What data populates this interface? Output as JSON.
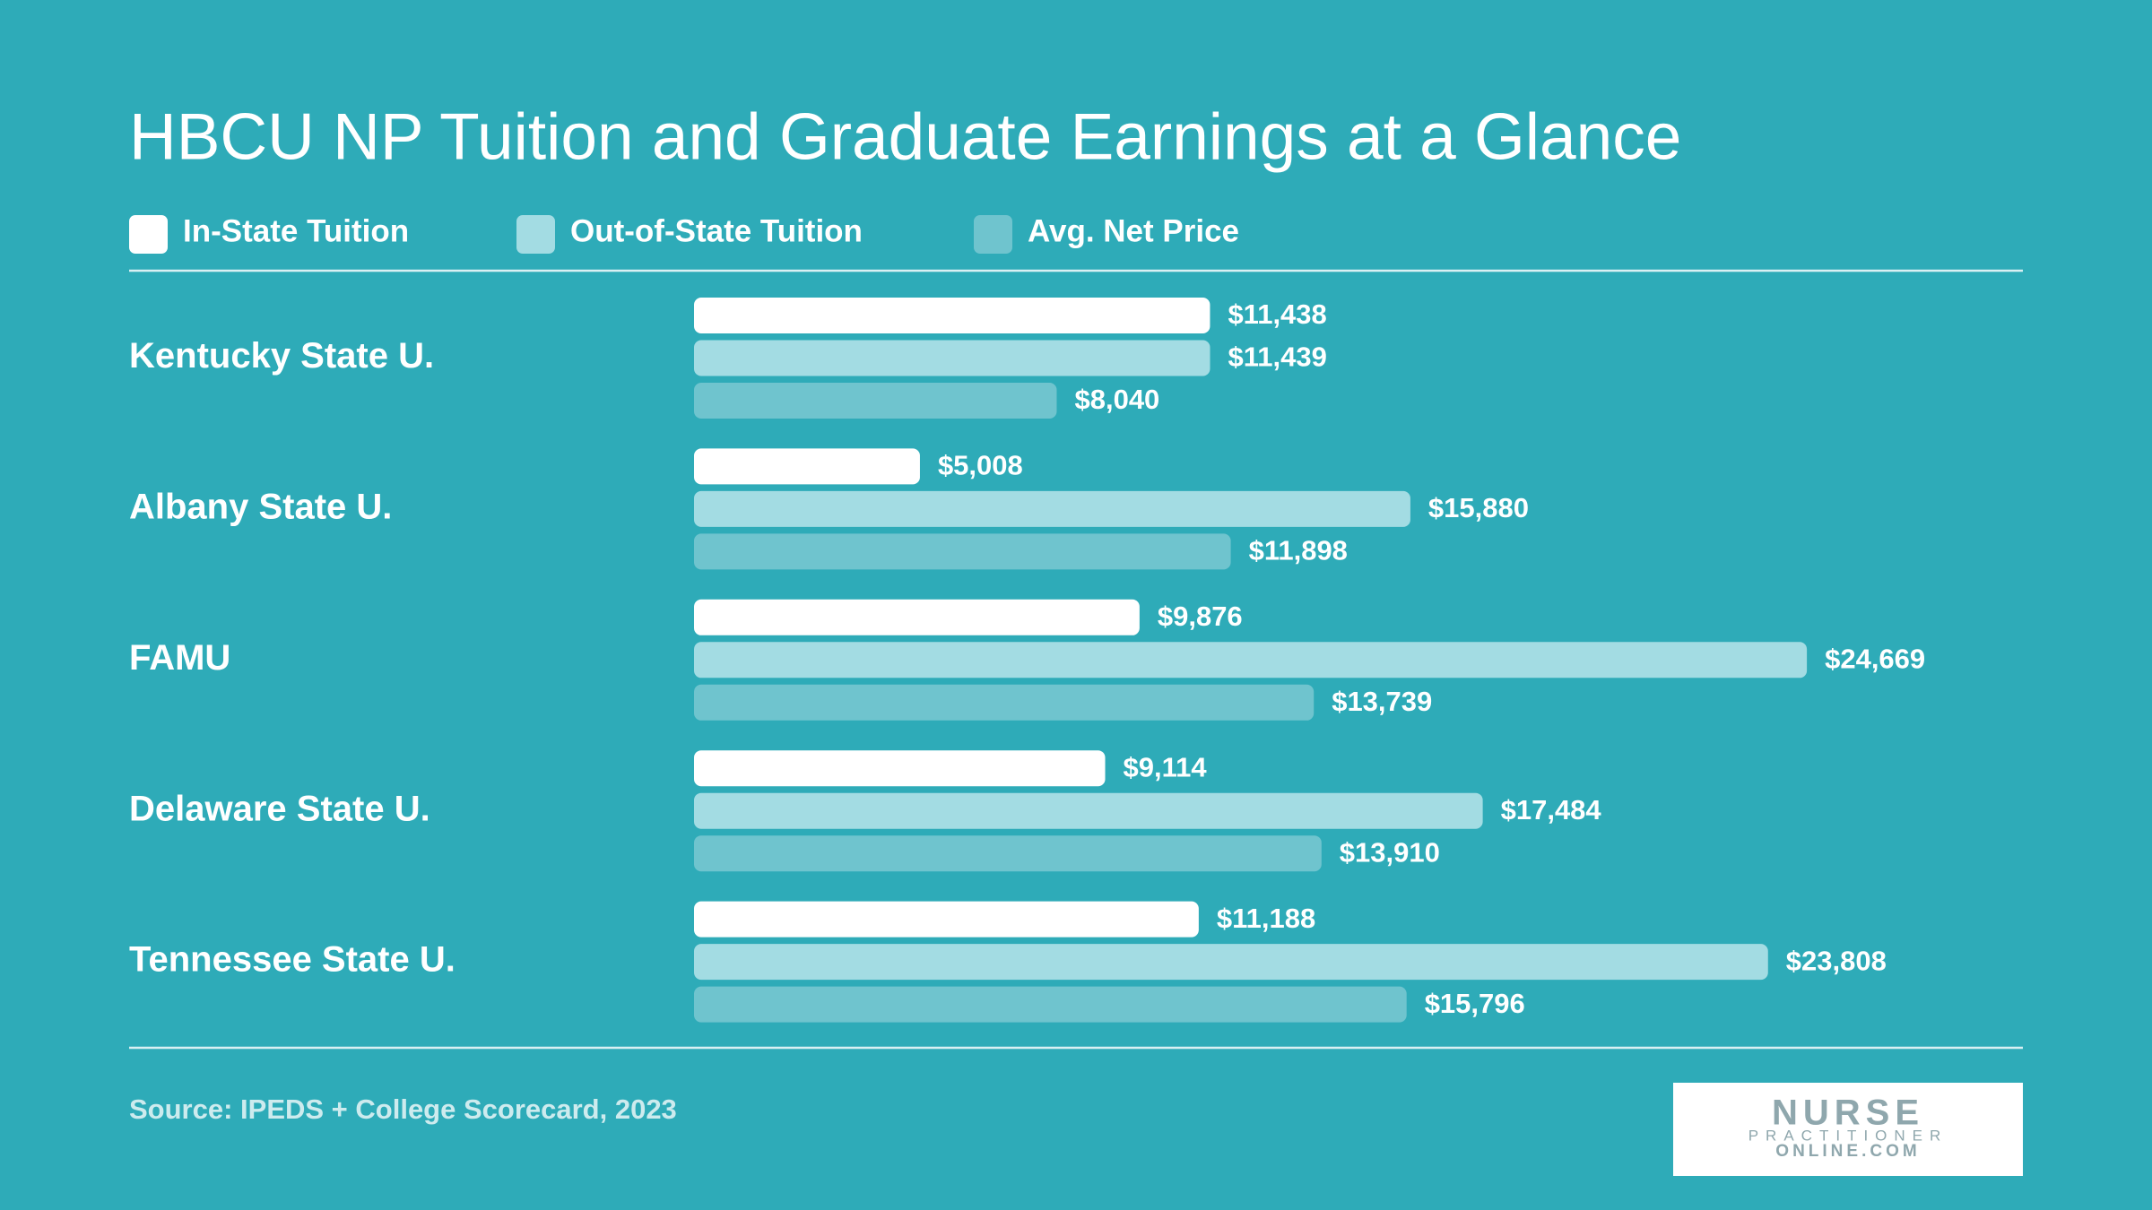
{
  "chart_data": {
    "type": "bar",
    "orientation": "horizontal",
    "title": "HBCU NP Tuition and Graduate Earnings at a Glance",
    "categories": [
      "Kentucky State U.",
      "Albany State U.",
      "FAMU",
      "Delaware State U.",
      "Tennessee State U."
    ],
    "series": [
      {
        "name": "In-State Tuition",
        "color": "#ffffff",
        "values": [
          11438,
          5008,
          9876,
          9114,
          11188
        ],
        "value_labels": [
          "$11,438",
          "$5,008",
          "$9,876",
          "$9,114",
          "$11,188"
        ]
      },
      {
        "name": "Out-of-State Tuition",
        "color": "#a3dce3",
        "values": [
          11439,
          15880,
          24669,
          17484,
          23808
        ],
        "value_labels": [
          "$11,439",
          "$15,880",
          "$24,669",
          "$17,484",
          "$23,808"
        ]
      },
      {
        "name": "Avg. Net Price",
        "color": "#6fc4ce",
        "values": [
          8040,
          11898,
          13739,
          13910,
          15796
        ],
        "value_labels": [
          "$8,040",
          "$11,898",
          "$13,739",
          "$13,910",
          "$15,796"
        ]
      }
    ],
    "source": "Source: IPEDS + College Scorecard, 2023"
  },
  "logo": {
    "lines": [
      "NURSE",
      "PRACTITIONER",
      "ONLINE.COM"
    ]
  }
}
